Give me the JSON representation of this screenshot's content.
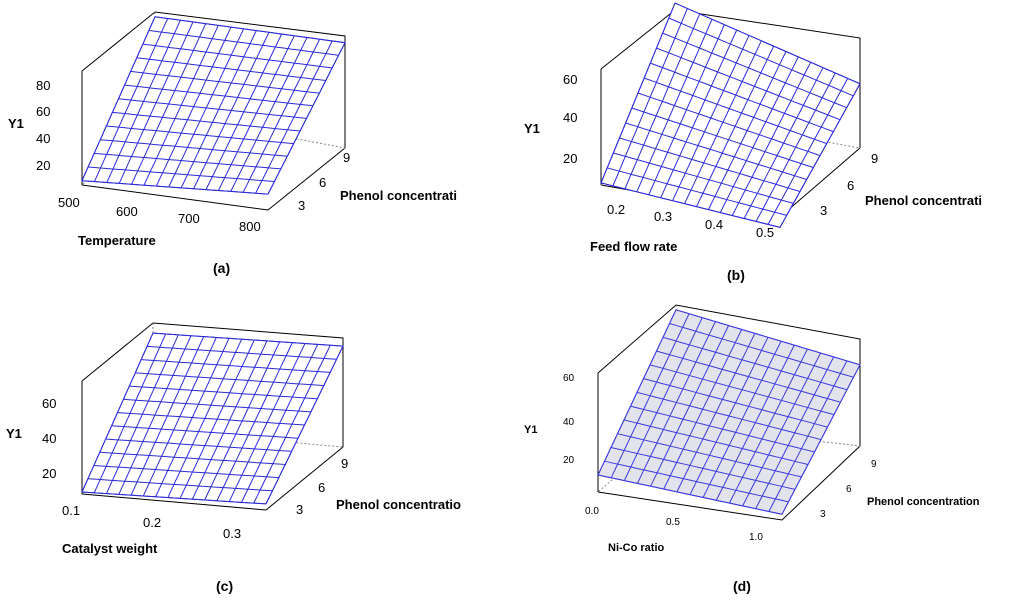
{
  "chart_data": [
    {
      "type": "surface",
      "caption": "(a)",
      "zlabel": "Y1",
      "xlabel": "Temperature",
      "ylabel": "Phenol concentrati",
      "x_ticks": [
        "500",
        "600",
        "700",
        "800"
      ],
      "y_ticks": [
        "3",
        "6",
        "9"
      ],
      "z_ticks": [
        "20",
        "40",
        "60",
        "80"
      ],
      "xlim": [
        500,
        800
      ],
      "ylim": [
        2,
        10
      ],
      "zlim": [
        9,
        88
      ],
      "corner_z": {
        "x_min_y_min": 12,
        "x_max_y_min": 20,
        "x_min_y_max": 75,
        "x_max_y_max": 82
      },
      "grid_size": [
        15,
        12
      ],
      "surface_color": "#ffffff",
      "grid_color": "#2b2bd9"
    },
    {
      "type": "surface",
      "caption": "(b)",
      "zlabel": "Y1",
      "xlabel": "Feed flow rate",
      "ylabel": "Phenol concentrati",
      "x_ticks": [
        "0.2",
        "0.3",
        "0.4",
        "0.5"
      ],
      "y_ticks": [
        "3",
        "6",
        "9"
      ],
      "z_ticks": [
        "20",
        "40",
        "60"
      ],
      "xlim": [
        0.15,
        0.55
      ],
      "ylim": [
        2,
        10
      ],
      "zlim": [
        10,
        66
      ],
      "corner_z": {
        "x_min_y_min": 11,
        "x_max_y_min": 5,
        "x_min_y_max": 64,
        "x_max_y_max": 41
      },
      "grid_size": [
        15,
        12
      ],
      "surface_color": "#ffffff",
      "grid_color": "#2b2bd9"
    },
    {
      "type": "surface",
      "caption": "(c)",
      "zlabel": "Y1",
      "xlabel": "Catalyst weight",
      "ylabel": "Phenol concentratio",
      "x_ticks": [
        "0.1",
        "0.2",
        "0.3"
      ],
      "y_ticks": [
        "3",
        "6",
        "9"
      ],
      "z_ticks": [
        "20",
        "40",
        "60"
      ],
      "xlim": [
        0.1,
        0.3
      ],
      "ylim": [
        2,
        10
      ],
      "zlim": [
        10,
        66
      ],
      "corner_z": {
        "x_min_y_min": 11,
        "x_max_y_min": 13,
        "x_min_y_max": 58,
        "x_max_y_max": 60
      },
      "grid_size": [
        15,
        12
      ],
      "surface_color": "#ffffff",
      "grid_color": "#2b2bd9"
    },
    {
      "type": "surface",
      "caption": "(d)",
      "zlabel": "Y1",
      "xlabel": "Ni-Co ratio",
      "ylabel": "Phenol concentration",
      "x_ticks": [
        "0.0",
        "0.5",
        "1.0"
      ],
      "y_ticks": [
        "3",
        "6",
        "9"
      ],
      "z_ticks": [
        "20",
        "40",
        "60"
      ],
      "xlim": [
        0,
        1
      ],
      "ylim": [
        2,
        10
      ],
      "zlim": [
        5,
        68
      ],
      "corner_z": {
        "x_min_y_min": 14,
        "x_max_y_min": 8,
        "x_min_y_max": 66,
        "x_max_y_max": 48
      },
      "grid_size": [
        14,
        12
      ],
      "surface_color": "#e3e3ee",
      "grid_color": "#3b3be0"
    }
  ]
}
